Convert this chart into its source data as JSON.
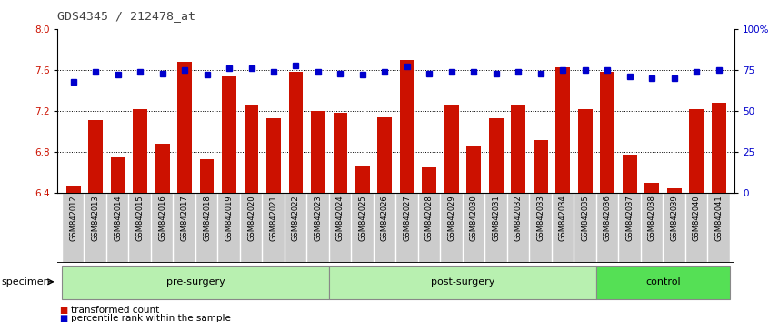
{
  "title": "GDS4345 / 212478_at",
  "samples": [
    "GSM842012",
    "GSM842013",
    "GSM842014",
    "GSM842015",
    "GSM842016",
    "GSM842017",
    "GSM842018",
    "GSM842019",
    "GSM842020",
    "GSM842021",
    "GSM842022",
    "GSM842023",
    "GSM842024",
    "GSM842025",
    "GSM842026",
    "GSM842027",
    "GSM842028",
    "GSM842029",
    "GSM842030",
    "GSM842031",
    "GSM842032",
    "GSM842033",
    "GSM842034",
    "GSM842035",
    "GSM842036",
    "GSM842037",
    "GSM842038",
    "GSM842039",
    "GSM842040",
    "GSM842041"
  ],
  "bar_values": [
    6.47,
    7.11,
    6.75,
    7.22,
    6.88,
    7.68,
    6.73,
    7.54,
    7.26,
    7.13,
    7.58,
    7.2,
    7.18,
    6.67,
    7.14,
    7.7,
    6.65,
    7.26,
    6.86,
    7.13,
    7.26,
    6.92,
    7.63,
    7.22,
    7.58,
    6.78,
    6.5,
    6.45,
    7.22,
    7.28
  ],
  "dot_values": [
    68,
    74,
    72,
    74,
    73,
    75,
    72,
    76,
    76,
    74,
    78,
    74,
    73,
    72,
    74,
    77,
    73,
    74,
    74,
    73,
    74,
    73,
    75,
    75,
    75,
    71,
    70,
    70,
    74,
    75
  ],
  "groups": [
    {
      "label": "pre-surgery",
      "start": 0,
      "end": 12
    },
    {
      "label": "post-surgery",
      "start": 12,
      "end": 24
    },
    {
      "label": "control",
      "start": 24,
      "end": 30
    }
  ],
  "group_colors": [
    "#b8f0b0",
    "#b8f0b0",
    "#55e055"
  ],
  "group_edge_color": "#888888",
  "ylim_left": [
    6.4,
    8.0
  ],
  "ylim_right": [
    0,
    100
  ],
  "yticks_left": [
    6.4,
    6.8,
    7.2,
    7.6,
    8.0
  ],
  "yticks_right": [
    0,
    25,
    50,
    75,
    100
  ],
  "ytick_labels_right": [
    "0",
    "25",
    "50",
    "75",
    "100%"
  ],
  "bar_color": "#CC1100",
  "dot_color": "#0000CC",
  "bar_width": 0.65,
  "dotted_lines": [
    6.8,
    7.2,
    7.6
  ],
  "legend_items": [
    {
      "label": "transformed count",
      "color": "#CC1100"
    },
    {
      "label": "percentile rank within the sample",
      "color": "#0000CC"
    }
  ],
  "specimen_label": "specimen",
  "title_color": "#444444",
  "left_ytick_color": "#CC1100",
  "right_ytick_color": "#0000CC",
  "xtick_bg_color": "#cccccc",
  "n_samples": 30
}
